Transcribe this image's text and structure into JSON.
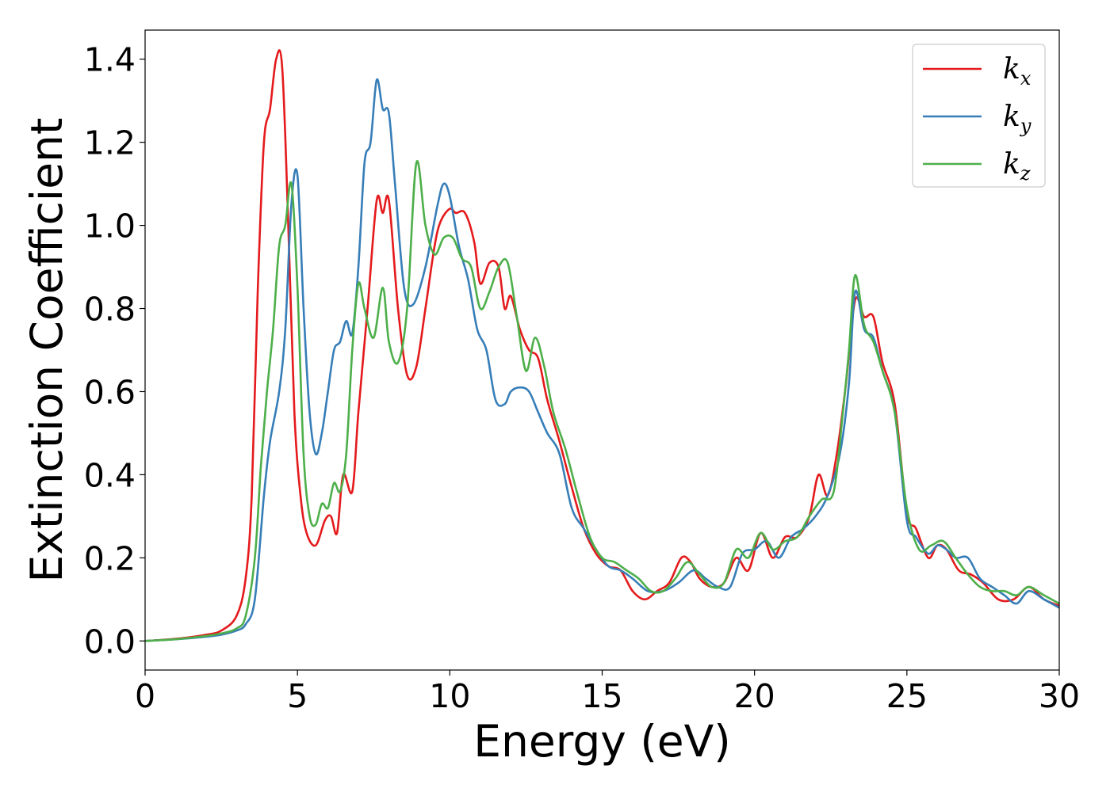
{
  "chart_data": {
    "type": "line",
    "title": "",
    "xlabel": "Energy (eV)",
    "ylabel": "Extinction Coefficient",
    "xlim": [
      0,
      30
    ],
    "ylim": [
      -0.07,
      1.47
    ],
    "xticks": [
      0,
      5,
      10,
      15,
      20,
      25,
      30
    ],
    "xtick_labels": [
      "0",
      "5",
      "10",
      "15",
      "20",
      "25",
      "30"
    ],
    "yticks": [
      0.0,
      0.2,
      0.4,
      0.6,
      0.8,
      1.0,
      1.2,
      1.4
    ],
    "ytick_labels": [
      "0.0",
      "0.2",
      "0.4",
      "0.6",
      "0.8",
      "1.0",
      "1.2",
      "1.4"
    ],
    "grid": false,
    "legend_position": "top-right",
    "series": [
      {
        "name": "k",
        "subscript": "x",
        "color": "#e41a1c",
        "x": [
          0,
          1,
          2,
          2.5,
          3.0,
          3.3,
          3.5,
          3.7,
          3.9,
          4.1,
          4.3,
          4.5,
          4.7,
          4.9,
          5.1,
          5.3,
          5.6,
          5.9,
          6.1,
          6.3,
          6.5,
          6.8,
          7.0,
          7.3,
          7.6,
          7.8,
          8.0,
          8.3,
          8.6,
          8.9,
          9.2,
          9.5,
          9.7,
          10.0,
          10.2,
          10.5,
          10.8,
          11.0,
          11.3,
          11.6,
          11.8,
          12.0,
          12.3,
          12.6,
          12.9,
          13.2,
          13.6,
          14.0,
          14.4,
          14.8,
          15.2,
          15.6,
          16.0,
          16.4,
          16.8,
          17.2,
          17.6,
          17.9,
          18.2,
          18.6,
          19.0,
          19.4,
          19.8,
          20.2,
          20.6,
          21.0,
          21.4,
          21.8,
          22.1,
          22.4,
          22.7,
          23.0,
          23.3,
          23.6,
          23.9,
          24.2,
          24.6,
          25.0,
          25.3,
          25.7,
          26.0,
          26.3,
          26.7,
          27.1,
          27.5,
          28.0,
          28.5,
          29.0,
          29.5,
          30.0
        ],
        "values": [
          0.0,
          0.005,
          0.015,
          0.025,
          0.06,
          0.15,
          0.35,
          0.85,
          1.2,
          1.28,
          1.4,
          1.38,
          1.0,
          0.55,
          0.35,
          0.26,
          0.23,
          0.29,
          0.3,
          0.26,
          0.4,
          0.36,
          0.55,
          0.8,
          1.06,
          1.03,
          1.06,
          0.8,
          0.64,
          0.66,
          0.8,
          0.95,
          1.01,
          1.04,
          1.03,
          1.03,
          0.96,
          0.86,
          0.91,
          0.9,
          0.8,
          0.83,
          0.75,
          0.7,
          0.68,
          0.58,
          0.48,
          0.37,
          0.27,
          0.21,
          0.18,
          0.17,
          0.12,
          0.1,
          0.12,
          0.14,
          0.2,
          0.19,
          0.15,
          0.13,
          0.14,
          0.2,
          0.17,
          0.26,
          0.2,
          0.25,
          0.25,
          0.3,
          0.4,
          0.35,
          0.45,
          0.62,
          0.82,
          0.78,
          0.78,
          0.67,
          0.57,
          0.31,
          0.27,
          0.2,
          0.23,
          0.22,
          0.17,
          0.16,
          0.14,
          0.1,
          0.1,
          0.13,
          0.1,
          0.085
        ]
      },
      {
        "name": "k",
        "subscript": "y",
        "color": "#377eb8",
        "x": [
          0,
          1,
          2,
          2.5,
          3.0,
          3.3,
          3.6,
          3.9,
          4.1,
          4.4,
          4.6,
          4.8,
          5.0,
          5.2,
          5.4,
          5.6,
          5.8,
          6.0,
          6.2,
          6.4,
          6.6,
          6.8,
          7.0,
          7.2,
          7.4,
          7.6,
          7.8,
          8.0,
          8.2,
          8.5,
          8.8,
          9.2,
          9.6,
          9.8,
          10.0,
          10.3,
          10.6,
          10.9,
          11.2,
          11.5,
          11.8,
          12.0,
          12.3,
          12.6,
          12.9,
          13.2,
          13.6,
          14.0,
          14.4,
          14.8,
          15.2,
          15.6,
          16.0,
          16.5,
          17.0,
          17.5,
          18.0,
          18.4,
          18.8,
          19.2,
          19.6,
          20.0,
          20.4,
          20.8,
          21.2,
          21.6,
          22.0,
          22.4,
          22.8,
          23.1,
          23.3,
          23.6,
          23.9,
          24.2,
          24.6,
          25.0,
          25.3,
          25.7,
          26.0,
          26.3,
          26.6,
          27.0,
          27.4,
          27.8,
          28.2,
          28.6,
          29.0,
          29.5,
          30.0
        ],
        "values": [
          0.0,
          0.004,
          0.01,
          0.015,
          0.025,
          0.04,
          0.1,
          0.35,
          0.48,
          0.6,
          0.75,
          1.05,
          1.12,
          0.8,
          0.55,
          0.45,
          0.5,
          0.6,
          0.7,
          0.72,
          0.77,
          0.74,
          0.9,
          1.15,
          1.2,
          1.35,
          1.28,
          1.27,
          1.1,
          0.85,
          0.81,
          0.9,
          1.05,
          1.1,
          1.07,
          0.95,
          0.87,
          0.75,
          0.7,
          0.58,
          0.57,
          0.6,
          0.61,
          0.6,
          0.55,
          0.5,
          0.45,
          0.32,
          0.27,
          0.22,
          0.18,
          0.17,
          0.15,
          0.12,
          0.12,
          0.14,
          0.17,
          0.15,
          0.13,
          0.13,
          0.21,
          0.22,
          0.24,
          0.2,
          0.25,
          0.27,
          0.3,
          0.35,
          0.45,
          0.62,
          0.84,
          0.75,
          0.73,
          0.65,
          0.55,
          0.29,
          0.25,
          0.21,
          0.23,
          0.22,
          0.2,
          0.2,
          0.15,
          0.13,
          0.11,
          0.09,
          0.12,
          0.1,
          0.08
        ]
      },
      {
        "name": "k",
        "subscript": "z",
        "color": "#4daf4a",
        "x": [
          0,
          1,
          2,
          2.5,
          3.0,
          3.3,
          3.6,
          3.8,
          4.0,
          4.2,
          4.4,
          4.6,
          4.8,
          5.0,
          5.2,
          5.4,
          5.6,
          5.8,
          6.0,
          6.2,
          6.4,
          6.6,
          6.8,
          7.0,
          7.2,
          7.5,
          7.8,
          8.0,
          8.3,
          8.6,
          8.9,
          9.2,
          9.5,
          9.8,
          10.1,
          10.4,
          10.7,
          11.0,
          11.3,
          11.6,
          11.9,
          12.2,
          12.5,
          12.8,
          13.1,
          13.4,
          13.8,
          14.2,
          14.6,
          15.0,
          15.4,
          15.8,
          16.2,
          16.6,
          17.0,
          17.4,
          17.8,
          18.2,
          18.6,
          19.0,
          19.4,
          19.8,
          20.2,
          20.6,
          21.0,
          21.4,
          21.8,
          22.2,
          22.6,
          22.9,
          23.1,
          23.3,
          23.6,
          23.9,
          24.2,
          24.6,
          25.0,
          25.4,
          25.8,
          26.2,
          26.6,
          27.0,
          27.4,
          27.8,
          28.2,
          28.6,
          29.0,
          29.5,
          30.0
        ],
        "values": [
          0.0,
          0.004,
          0.012,
          0.018,
          0.03,
          0.06,
          0.2,
          0.42,
          0.6,
          0.75,
          0.95,
          1.0,
          1.1,
          0.85,
          0.45,
          0.3,
          0.28,
          0.33,
          0.32,
          0.38,
          0.36,
          0.45,
          0.7,
          0.86,
          0.8,
          0.73,
          0.85,
          0.72,
          0.67,
          0.8,
          1.15,
          1.0,
          0.93,
          0.97,
          0.97,
          0.92,
          0.9,
          0.8,
          0.84,
          0.9,
          0.91,
          0.78,
          0.65,
          0.73,
          0.66,
          0.55,
          0.46,
          0.35,
          0.25,
          0.2,
          0.19,
          0.17,
          0.15,
          0.12,
          0.12,
          0.15,
          0.19,
          0.16,
          0.13,
          0.14,
          0.22,
          0.2,
          0.26,
          0.22,
          0.24,
          0.25,
          0.3,
          0.34,
          0.36,
          0.55,
          0.7,
          0.88,
          0.76,
          0.72,
          0.65,
          0.55,
          0.32,
          0.22,
          0.23,
          0.24,
          0.2,
          0.16,
          0.13,
          0.12,
          0.12,
          0.11,
          0.13,
          0.11,
          0.09
        ]
      }
    ]
  }
}
